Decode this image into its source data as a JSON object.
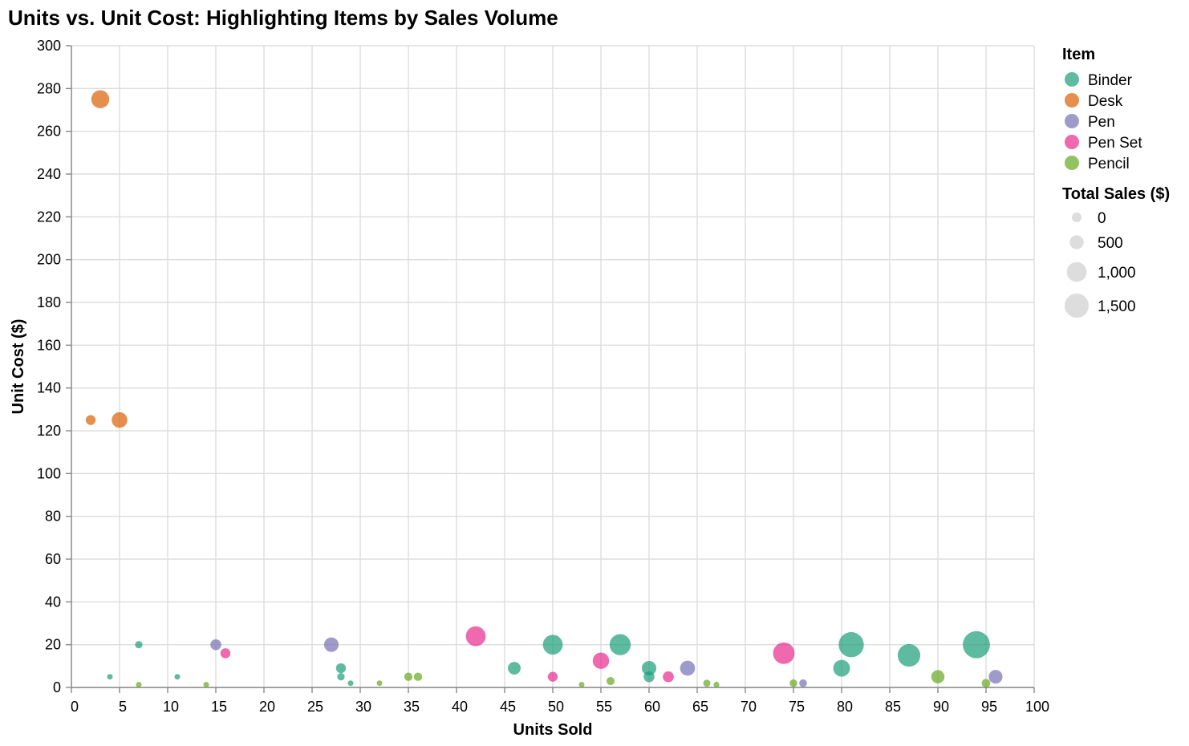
{
  "chart_data": {
    "type": "scatter",
    "title": "Units vs. Unit Cost: Highlighting Items by Sales Volume",
    "xlabel": "Units Sold",
    "ylabel": "Unit Cost ($)",
    "xlim": [
      0,
      100
    ],
    "ylim": [
      0,
      300
    ],
    "x_ticks": [
      0,
      5,
      10,
      15,
      20,
      25,
      30,
      35,
      40,
      45,
      50,
      55,
      60,
      65,
      70,
      75,
      80,
      85,
      90,
      95,
      100
    ],
    "y_ticks": [
      0,
      20,
      40,
      60,
      80,
      100,
      120,
      140,
      160,
      180,
      200,
      220,
      240,
      260,
      280,
      300
    ],
    "grid": true,
    "legend_position": "right",
    "color_legend": {
      "title": "Item",
      "items": [
        {
          "label": "Binder",
          "color": "#1b9e77"
        },
        {
          "label": "Desk",
          "color": "#d95f02"
        },
        {
          "label": "Pen",
          "color": "#7570b3"
        },
        {
          "label": "Pen Set",
          "color": "#e7298a"
        },
        {
          "label": "Pencil",
          "color": "#66a61e"
        }
      ]
    },
    "size_legend": {
      "title": "Total Sales ($)",
      "values": [
        0,
        500,
        1000,
        1500
      ],
      "labels": [
        "0",
        "500",
        "1,000",
        "1,500"
      ]
    },
    "series": [
      {
        "name": "Binder",
        "points": [
          {
            "x": 4,
            "y": 4.99,
            "sales": 19.96
          },
          {
            "x": 7,
            "y": 19.99,
            "sales": 139.93
          },
          {
            "x": 11,
            "y": 4.99,
            "sales": 54.89
          },
          {
            "x": 28,
            "y": 8.99,
            "sales": 251.72
          },
          {
            "x": 28,
            "y": 4.99,
            "sales": 139.72
          },
          {
            "x": 29,
            "y": 1.99,
            "sales": 57.71
          },
          {
            "x": 46,
            "y": 8.99,
            "sales": 413.54
          },
          {
            "x": 50,
            "y": 19.99,
            "sales": 999.5
          },
          {
            "x": 57,
            "y": 19.99,
            "sales": 1139.43
          },
          {
            "x": 60,
            "y": 8.99,
            "sales": 539.4
          },
          {
            "x": 60,
            "y": 4.99,
            "sales": 299.4
          },
          {
            "x": 80,
            "y": 8.99,
            "sales": 719.2
          },
          {
            "x": 81,
            "y": 19.99,
            "sales": 1619.19
          },
          {
            "x": 87,
            "y": 15.0,
            "sales": 1305.0
          },
          {
            "x": 94,
            "y": 19.99,
            "sales": 1879.06
          }
        ]
      },
      {
        "name": "Desk",
        "points": [
          {
            "x": 2,
            "y": 125.0,
            "sales": 250.0
          },
          {
            "x": 3,
            "y": 275.0,
            "sales": 825.0
          },
          {
            "x": 5,
            "y": 125.0,
            "sales": 625.0
          }
        ]
      },
      {
        "name": "Pen",
        "points": [
          {
            "x": 15,
            "y": 19.99,
            "sales": 299.85
          },
          {
            "x": 27,
            "y": 19.99,
            "sales": 539.73
          },
          {
            "x": 64,
            "y": 8.99,
            "sales": 575.36
          },
          {
            "x": 76,
            "y": 1.99,
            "sales": 151.24
          },
          {
            "x": 96,
            "y": 4.99,
            "sales": 479.04
          }
        ]
      },
      {
        "name": "Pen Set",
        "points": [
          {
            "x": 16,
            "y": 15.99,
            "sales": 255.84
          },
          {
            "x": 42,
            "y": 23.95,
            "sales": 1005.9
          },
          {
            "x": 50,
            "y": 4.99,
            "sales": 249.5
          },
          {
            "x": 55,
            "y": 12.49,
            "sales": 686.95
          },
          {
            "x": 62,
            "y": 4.99,
            "sales": 309.38
          },
          {
            "x": 74,
            "y": 15.99,
            "sales": 1183.26
          }
        ]
      },
      {
        "name": "Pencil",
        "points": [
          {
            "x": 7,
            "y": 1.29,
            "sales": 9.03
          },
          {
            "x": 14,
            "y": 1.29,
            "sales": 18.06
          },
          {
            "x": 32,
            "y": 1.99,
            "sales": 63.68
          },
          {
            "x": 35,
            "y": 4.99,
            "sales": 174.65
          },
          {
            "x": 36,
            "y": 4.99,
            "sales": 179.64
          },
          {
            "x": 53,
            "y": 1.29,
            "sales": 68.37
          },
          {
            "x": 56,
            "y": 2.99,
            "sales": 167.44
          },
          {
            "x": 66,
            "y": 1.99,
            "sales": 131.34
          },
          {
            "x": 67,
            "y": 1.29,
            "sales": 86.43
          },
          {
            "x": 75,
            "y": 1.99,
            "sales": 149.25
          },
          {
            "x": 90,
            "y": 4.99,
            "sales": 449.1
          },
          {
            "x": 95,
            "y": 1.99,
            "sales": 189.05
          }
        ]
      }
    ]
  }
}
